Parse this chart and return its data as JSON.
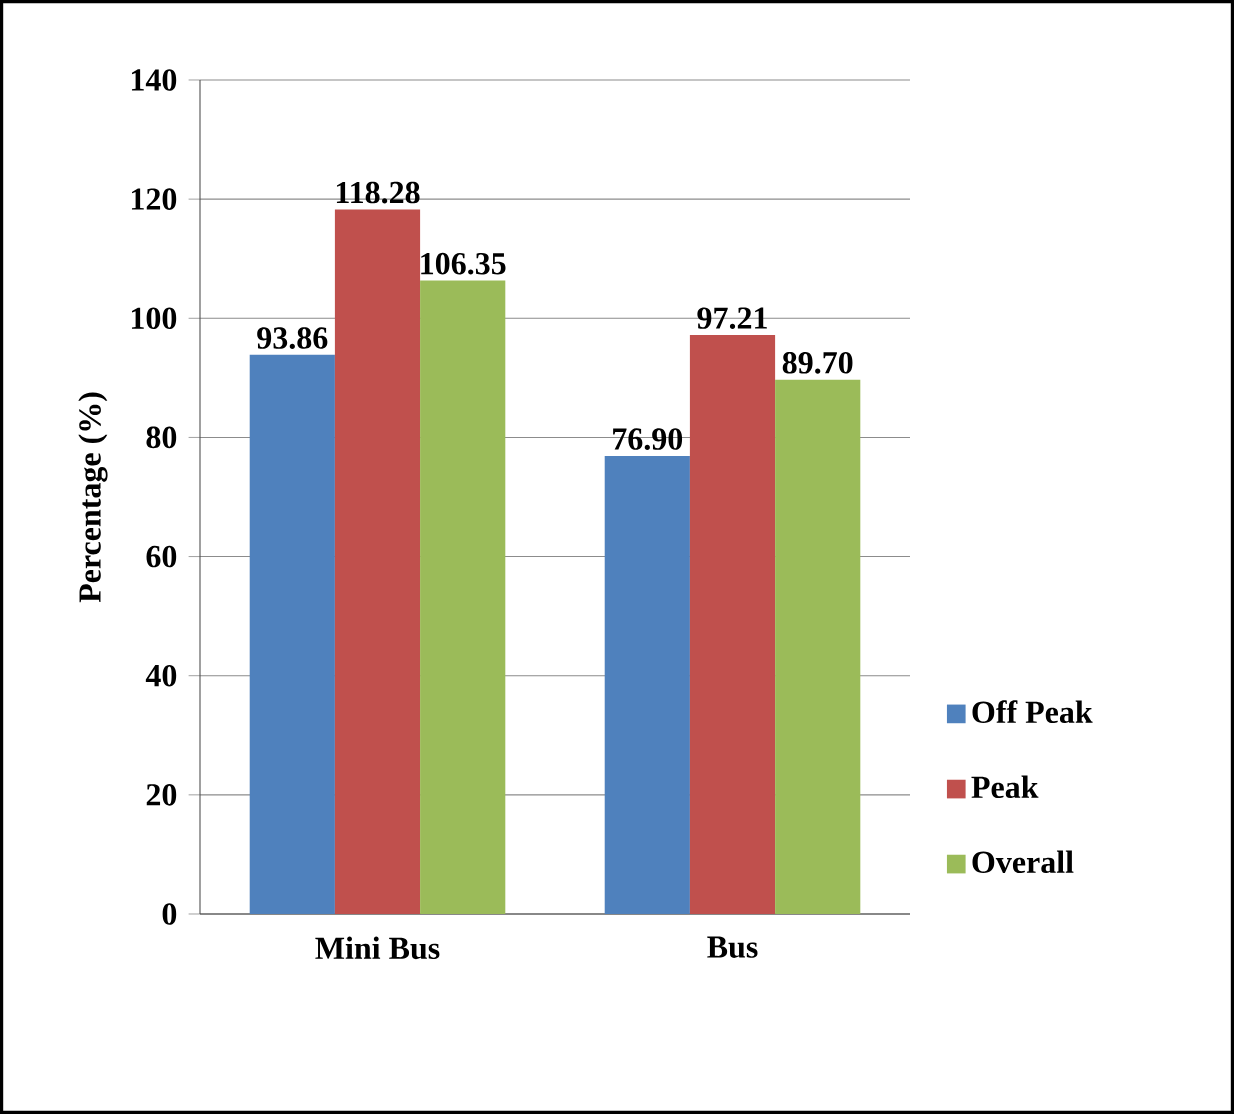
{
  "chart_data": {
    "type": "bar",
    "categories": [
      "Mini Bus",
      "Bus"
    ],
    "ylabel": "Percentage (%)",
    "ylim": [
      0,
      140
    ],
    "yticks": [
      0,
      20,
      40,
      60,
      80,
      100,
      120,
      140
    ],
    "grid": "y",
    "legend": "right",
    "series": [
      {
        "name": "Off Peak",
        "color": "#4f81bd",
        "values": [
          93.86,
          76.9
        ],
        "value_labels": [
          "93.86",
          "76.90"
        ]
      },
      {
        "name": "Peak",
        "color": "#c0504d",
        "values": [
          118.28,
          97.21
        ],
        "value_labels": [
          "118.28",
          "97.21"
        ]
      },
      {
        "name": "Overall",
        "color": "#9bbb59",
        "values": [
          106.35,
          89.7
        ],
        "value_labels": [
          "106.35",
          "89.70"
        ]
      }
    ]
  }
}
